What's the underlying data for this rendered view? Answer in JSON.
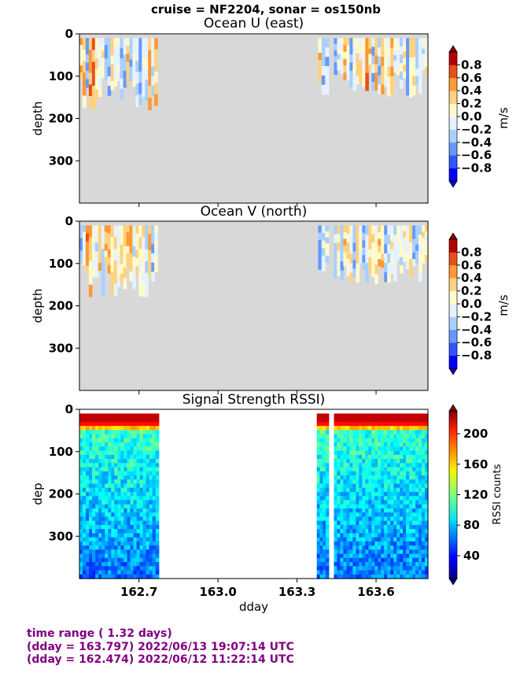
{
  "figure": {
    "suptitle": "cruise = NF2204,  sonar = os150nb",
    "footer": [
      "time range ( 1.32 days)",
      "(dday = 163.797) 2022/06/13 19:07:14 UTC",
      "(dday = 162.474) 2022/06/12 11:22:14 UTC"
    ]
  },
  "chart_data": [
    {
      "type": "heatmap",
      "title": "Ocean U (east)",
      "ylabel": "depth",
      "xlim": [
        162.474,
        163.797
      ],
      "ylim": [
        400,
        0
      ],
      "yticks": [
        0,
        100,
        200,
        300
      ],
      "yticklabels": [
        "0",
        "100",
        "200",
        "300"
      ],
      "xticks": [
        162.7,
        163.0,
        163.3,
        163.6
      ],
      "xticklabels": [],
      "colorbar": {
        "label": "m/s",
        "ticks": [
          0.8,
          0.6,
          0.4,
          0.2,
          0.0,
          -0.2,
          -0.4,
          -0.6,
          -0.8
        ],
        "ticklabels": [
          "0.8",
          "0.6",
          "0.4",
          "0.2",
          "0.0",
          "−0.2",
          "−0.4",
          "−0.6",
          "−0.8"
        ]
      },
      "data_segments": [
        {
          "x": [
            162.474,
            162.77
          ],
          "max_depth": 180
        },
        {
          "x": [
            163.38,
            163.42
          ],
          "max_depth": 150
        },
        {
          "x": [
            163.44,
            163.797
          ],
          "max_depth": 150
        }
      ]
    },
    {
      "type": "heatmap",
      "title": "Ocean V (north)",
      "ylabel": "depth",
      "xlim": [
        162.474,
        163.797
      ],
      "ylim": [
        400,
        0
      ],
      "yticks": [
        0,
        100,
        200,
        300
      ],
      "yticklabels": [
        "0",
        "100",
        "200",
        "300"
      ],
      "xticks": [
        162.7,
        163.0,
        163.3,
        163.6
      ],
      "xticklabels": [],
      "colorbar": {
        "label": "m/s",
        "ticks": [
          0.8,
          0.6,
          0.4,
          0.2,
          0.0,
          -0.2,
          -0.4,
          -0.6,
          -0.8
        ],
        "ticklabels": [
          "0.8",
          "0.6",
          "0.4",
          "0.2",
          "0.0",
          "−0.2",
          "−0.4",
          "−0.6",
          "−0.8"
        ]
      },
      "data_segments": [
        {
          "x": [
            162.474,
            162.77
          ],
          "max_depth": 180
        },
        {
          "x": [
            163.38,
            163.42
          ],
          "max_depth": 150
        },
        {
          "x": [
            163.44,
            163.797
          ],
          "max_depth": 150
        }
      ]
    },
    {
      "type": "heatmap",
      "title": "Signal Strength RSSI)",
      "ylabel": "dep",
      "xlabel": "dday",
      "xlim": [
        162.474,
        163.797
      ],
      "ylim": [
        400,
        0
      ],
      "yticks": [
        0,
        100,
        200,
        300
      ],
      "yticklabels": [
        "0",
        "100",
        "200",
        "300"
      ],
      "xticks": [
        162.7,
        163.0,
        163.3,
        163.6
      ],
      "xticklabels": [
        "162.7",
        "163.0",
        "163.3",
        "163.6"
      ],
      "colorbar": {
        "label": "RSSI counts",
        "ticks": [
          200,
          160,
          120,
          80,
          40
        ],
        "ticklabels": [
          "200",
          "160",
          "120",
          "80",
          "40"
        ]
      },
      "data_segments": [
        {
          "x": [
            162.474,
            162.775
          ],
          "max_depth": 400
        },
        {
          "x": [
            163.375,
            163.42
          ],
          "max_depth": 400
        },
        {
          "x": [
            163.44,
            163.797
          ],
          "max_depth": 400
        }
      ]
    }
  ],
  "colors": {
    "nodata_background": "#d8d8d8",
    "velocity_levels": [
      "#0000ff",
      "#3355ff",
      "#6699ff",
      "#a8d0ff",
      "#e6f2ff",
      "#fffacd",
      "#ffd27f",
      "#ff9933",
      "#e8501a",
      "#b40000"
    ],
    "velocity_extend_low": "#1400c8",
    "velocity_extend_high": "#800000",
    "footer_text": "#800080"
  }
}
